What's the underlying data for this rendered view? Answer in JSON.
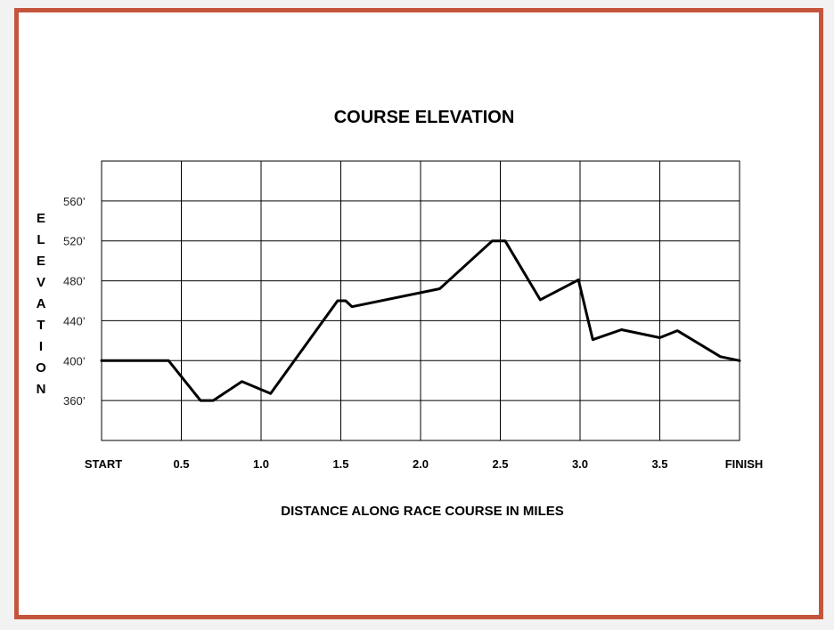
{
  "chart_data": {
    "type": "line",
    "title": "COURSE ELEVATION",
    "xlabel": "DISTANCE ALONG RACE COURSE IN MILES",
    "ylabel": "ELEVATION",
    "xlim": [
      0,
      4.0
    ],
    "ylim": [
      320,
      600
    ],
    "x_ticks": [
      {
        "value": 0,
        "label": "START"
      },
      {
        "value": 0.5,
        "label": "0.5"
      },
      {
        "value": 1.0,
        "label": "1.0"
      },
      {
        "value": 1.5,
        "label": "1.5"
      },
      {
        "value": 2.0,
        "label": "2.0"
      },
      {
        "value": 2.5,
        "label": "2.5"
      },
      {
        "value": 3.0,
        "label": "3.0"
      },
      {
        "value": 3.5,
        "label": "3.5"
      },
      {
        "value": 4.0,
        "label": "FINISH"
      }
    ],
    "y_ticks": [
      {
        "value": 360,
        "label": "360’"
      },
      {
        "value": 400,
        "label": "400’"
      },
      {
        "value": 440,
        "label": "440’"
      },
      {
        "value": 480,
        "label": "480’"
      },
      {
        "value": 520,
        "label": "520’"
      },
      {
        "value": 560,
        "label": "560’"
      }
    ],
    "grid": true,
    "line_color": "#000000",
    "series": [
      {
        "x": [
          0,
          0.42,
          0.62,
          0.7,
          0.88,
          1.06,
          1.48,
          1.53,
          1.57,
          2.12,
          2.45,
          2.53,
          2.75,
          2.99,
          3.08,
          3.26,
          3.5,
          3.61,
          3.88,
          4.0
        ],
        "y": [
          400,
          400,
          360,
          360,
          379,
          367,
          460,
          460,
          454,
          472,
          520,
          520,
          461,
          481,
          421,
          431,
          423,
          430,
          404,
          400
        ]
      }
    ]
  },
  "frame_color": "#c4553c"
}
